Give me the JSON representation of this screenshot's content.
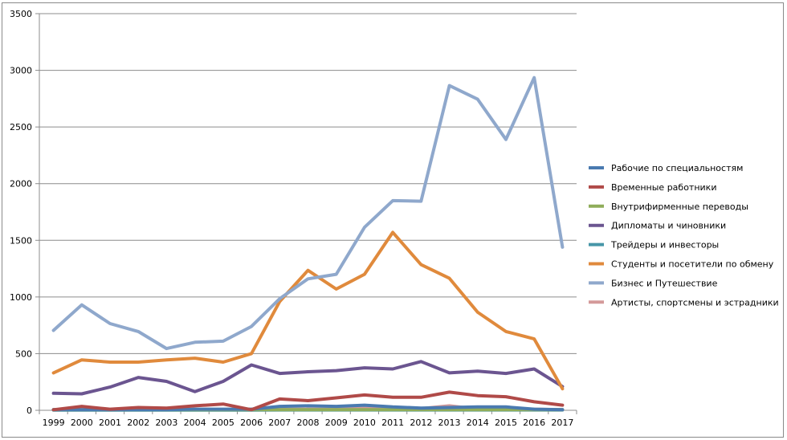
{
  "chart_data": {
    "type": "line",
    "title": "",
    "xlabel": "",
    "ylabel": "",
    "ylim": [
      0,
      3500
    ],
    "yticks": [
      "0",
      "500",
      "1000",
      "1500",
      "2000",
      "2500",
      "3000",
      "3500"
    ],
    "ytick_values": [
      0,
      500,
      1000,
      1500,
      2000,
      2500,
      3000,
      3500
    ],
    "grid": true,
    "legend_position": "right",
    "categories": [
      "1999",
      "2000",
      "2001",
      "2002",
      "2003",
      "2004",
      "2005",
      "2006",
      "2007",
      "2008",
      "2009",
      "2010",
      "2011",
      "2012",
      "2013",
      "2014",
      "2015",
      "2016",
      "2017"
    ],
    "series": [
      {
        "name": "Рабочие по специальностям",
        "color": "#4a7ab0",
        "values": [
          5,
          5,
          5,
          5,
          5,
          10,
          10,
          10,
          35,
          40,
          35,
          45,
          30,
          20,
          25,
          30,
          30,
          10,
          5
        ]
      },
      {
        "name": "Временные работники",
        "color": "#b04a48",
        "values": [
          5,
          35,
          10,
          25,
          20,
          40,
          55,
          5,
          100,
          85,
          110,
          135,
          115,
          115,
          160,
          130,
          120,
          75,
          45
        ]
      },
      {
        "name": "Внутрифирменные переводы",
        "color": "#8fad5a",
        "values": [
          5,
          5,
          5,
          5,
          5,
          5,
          5,
          5,
          5,
          5,
          5,
          5,
          5,
          5,
          5,
          5,
          5,
          5,
          5
        ]
      },
      {
        "name": "Дипломаты и чиновники",
        "color": "#6b5590",
        "values": [
          150,
          145,
          205,
          290,
          255,
          165,
          255,
          400,
          325,
          340,
          350,
          375,
          365,
          430,
          330,
          345,
          325,
          365,
          210
        ]
      },
      {
        "name": "Трейдеры и инвесторы",
        "color": "#4796a8",
        "values": [
          2,
          2,
          2,
          2,
          2,
          2,
          2,
          2,
          3,
          3,
          3,
          3,
          3,
          3,
          3,
          3,
          3,
          3,
          3
        ]
      },
      {
        "name": "Студенты и  посетители по обмену",
        "color": "#e08a3c",
        "values": [
          330,
          445,
          425,
          425,
          445,
          460,
          425,
          500,
          960,
          1235,
          1070,
          1200,
          1570,
          1285,
          1165,
          865,
          695,
          630,
          190
        ]
      },
      {
        "name": "Бизнес и Путешествие",
        "color": "#8fa8cc",
        "values": [
          705,
          930,
          765,
          695,
          545,
          600,
          610,
          740,
          985,
          1160,
          1200,
          1615,
          1850,
          1845,
          2865,
          2745,
          2390,
          2935,
          1440
        ]
      },
      {
        "name": "Артисты, спортсмены и эстрадники",
        "color": "#d49a9a",
        "values": [
          5,
          5,
          5,
          5,
          5,
          5,
          5,
          5,
          10,
          10,
          10,
          20,
          5,
          15,
          40,
          10,
          15,
          10,
          5
        ]
      }
    ]
  }
}
